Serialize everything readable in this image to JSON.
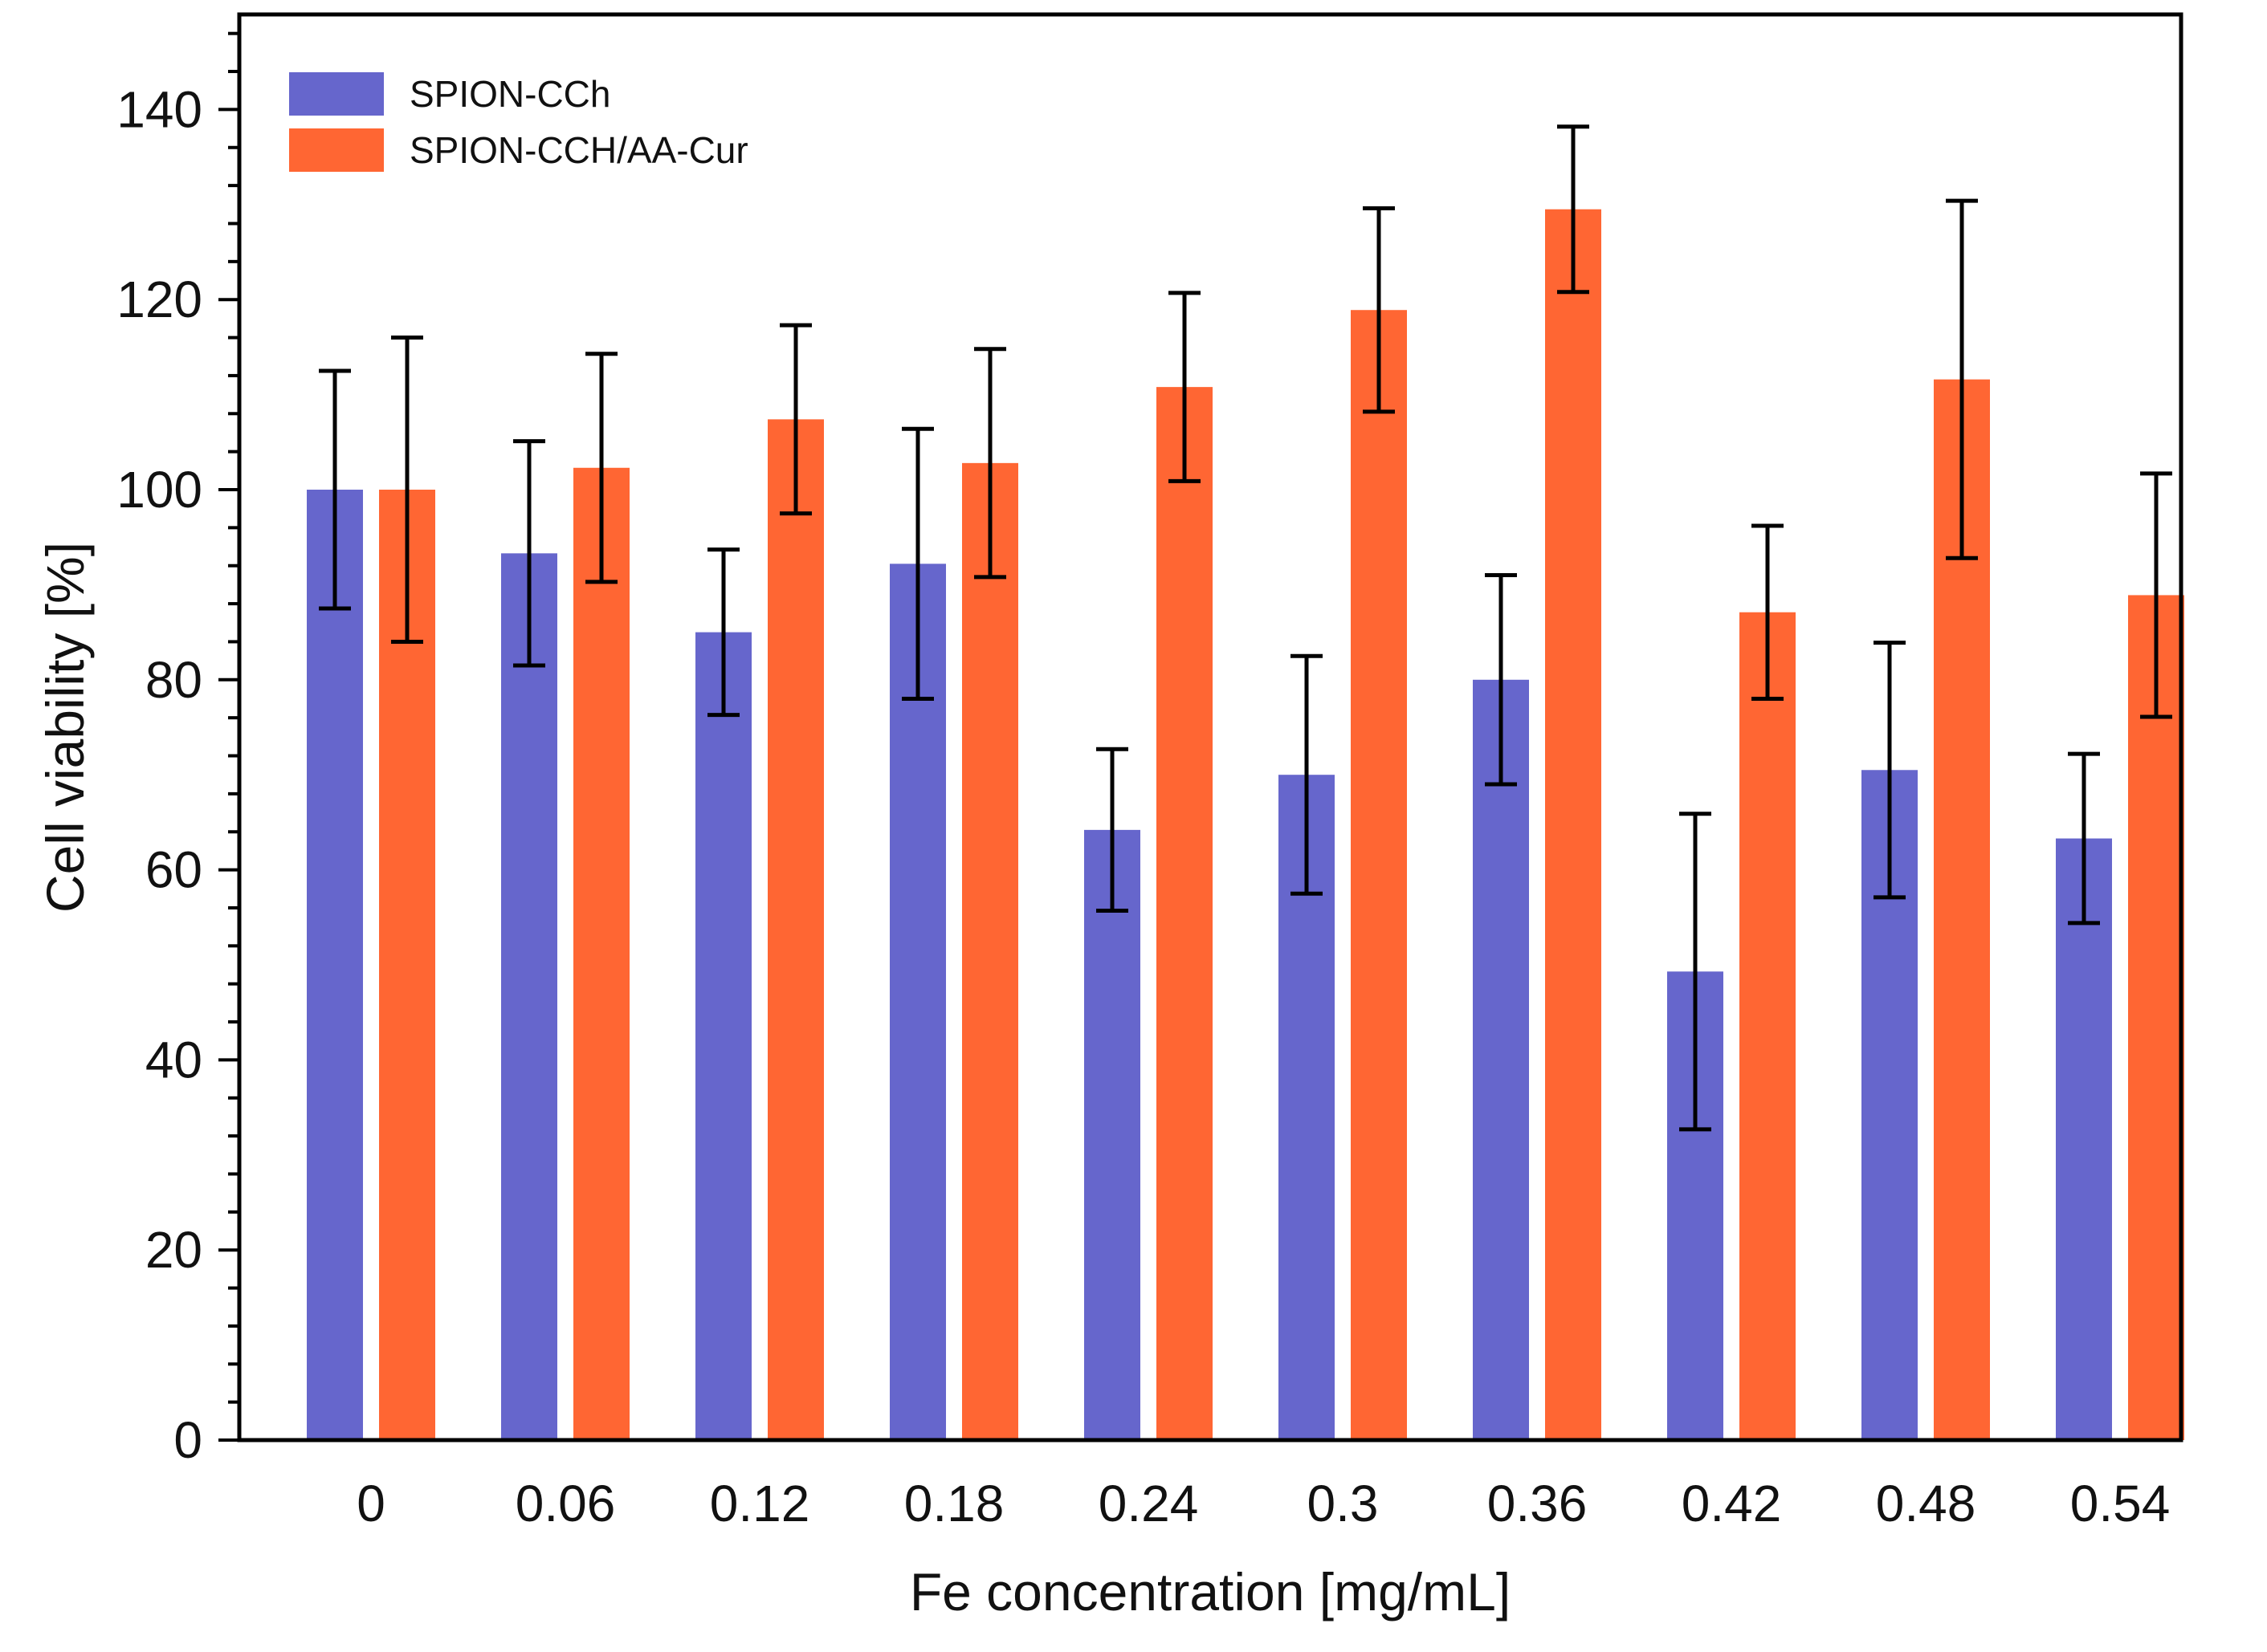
{
  "chart_data": {
    "type": "bar",
    "title": "",
    "xlabel": "Fe concentration [mg/mL]",
    "ylabel": "Cell viability [%]",
    "ylim": [
      0,
      150
    ],
    "yticks": [
      0,
      20,
      40,
      60,
      80,
      100,
      120,
      140
    ],
    "categories": [
      "0",
      "0.06",
      "0.12",
      "0.18",
      "0.24",
      "0.3",
      "0.36",
      "0.42",
      "0.48",
      "0.54"
    ],
    "legend_position": "top-left",
    "series": [
      {
        "name": "SPION-CCh",
        "color": "#6666CC",
        "values": [
          100,
          93.3,
          85,
          92.2,
          64.2,
          70,
          80,
          49.3,
          70.5,
          63.3
        ],
        "error": [
          12.5,
          11.8,
          8.7,
          14.2,
          8.5,
          12.5,
          11,
          16.6,
          13.4,
          8.9
        ]
      },
      {
        "name": "SPION-CCH/AA-Cur",
        "color": "#FF6633",
        "values": [
          100,
          102.3,
          107.4,
          102.8,
          110.8,
          118.9,
          129.5,
          87.1,
          111.6,
          88.9
        ],
        "error": [
          16,
          12,
          9.9,
          12,
          9.9,
          10.7,
          8.7,
          9.1,
          18.8,
          12.8
        ]
      }
    ]
  }
}
